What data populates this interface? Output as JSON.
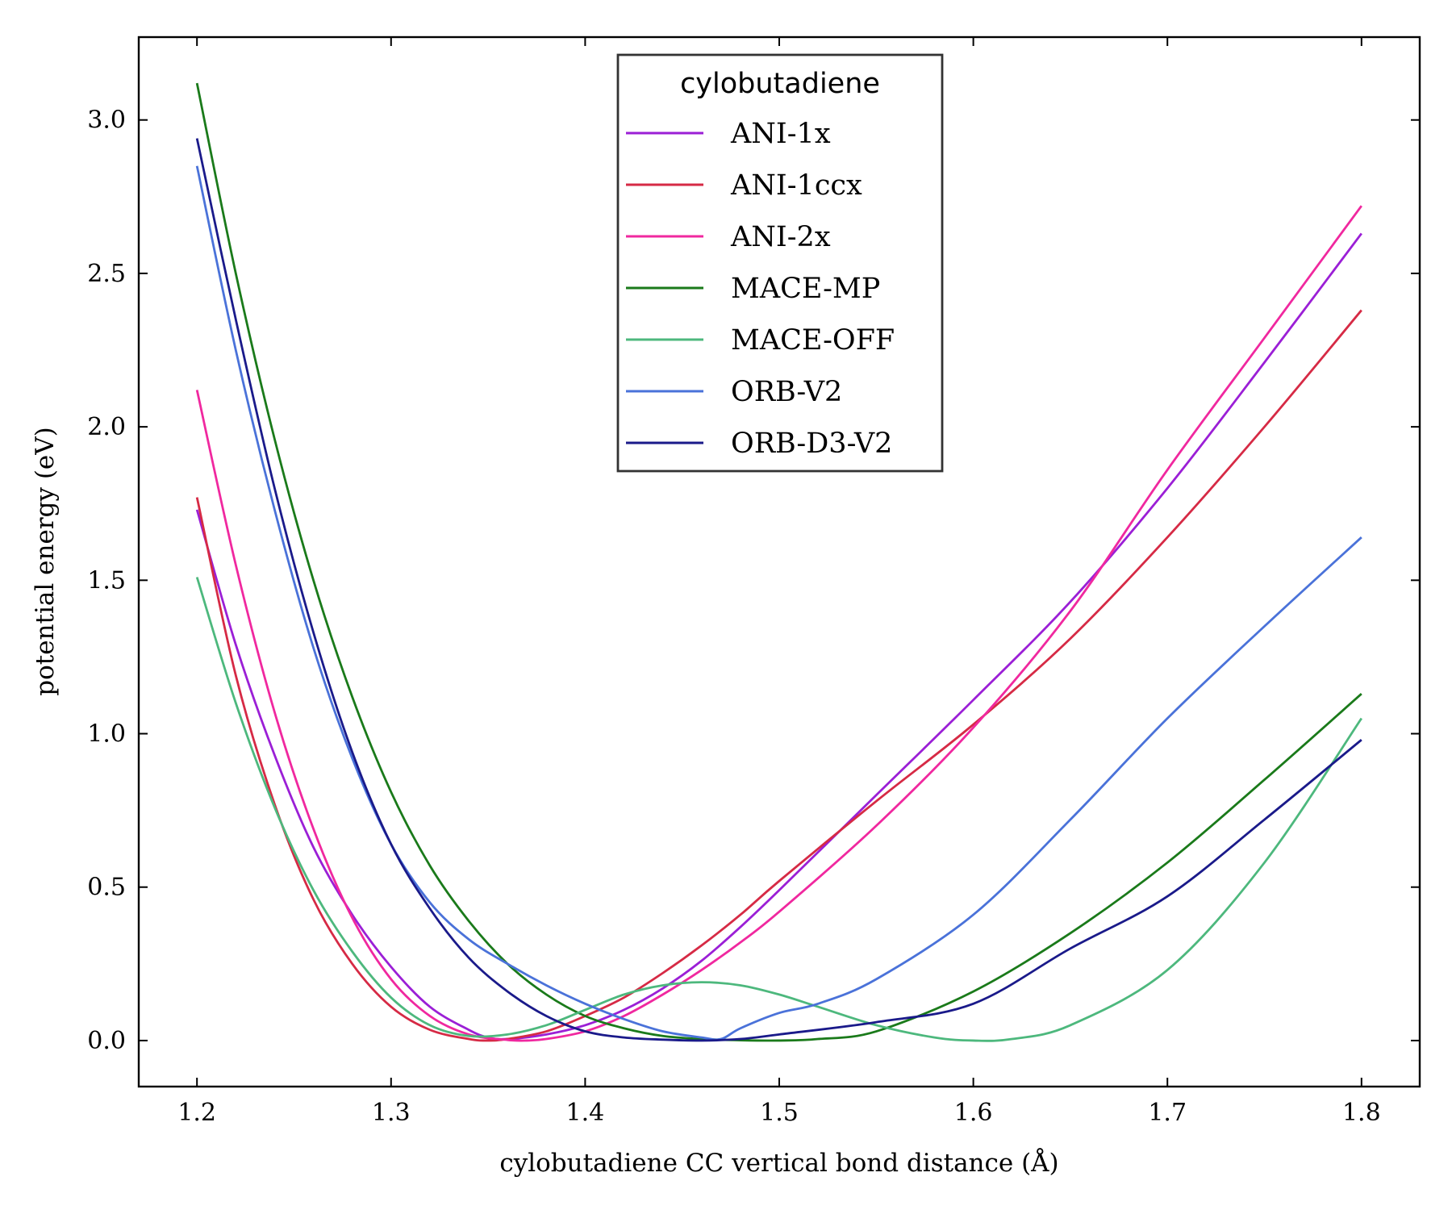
{
  "chart_data": {
    "type": "line",
    "title": "",
    "xlabel": "cylobutadiene CC vertical bond distance (Å)",
    "ylabel": "potential energy (eV)",
    "xlim": [
      1.17,
      1.83
    ],
    "ylim": [
      -0.15,
      3.27
    ],
    "xticks": [
      1.2,
      1.3,
      1.4,
      1.5,
      1.6,
      1.7,
      1.8
    ],
    "yticks": [
      0.0,
      0.5,
      1.0,
      1.5,
      2.0,
      2.5,
      3.0
    ],
    "xtick_labels": [
      "1.2",
      "1.3",
      "1.4",
      "1.5",
      "1.6",
      "1.7",
      "1.8"
    ],
    "ytick_labels": [
      "0.0",
      "0.5",
      "1.0",
      "1.5",
      "2.0",
      "2.5",
      "3.0"
    ],
    "grid": false,
    "legend": {
      "title": "cylobutadiene",
      "placement": "top-center"
    },
    "series": [
      {
        "name": "ANI-1x",
        "color": "#9b1fd6",
        "x": [
          1.2,
          1.22,
          1.24,
          1.26,
          1.28,
          1.3,
          1.32,
          1.34,
          1.35,
          1.36,
          1.38,
          1.4,
          1.42,
          1.44,
          1.46,
          1.48,
          1.5,
          1.55,
          1.6,
          1.65,
          1.7,
          1.75,
          1.8
        ],
        "y": [
          1.73,
          1.29,
          0.93,
          0.63,
          0.41,
          0.24,
          0.11,
          0.035,
          0.01,
          0.005,
          0.02,
          0.05,
          0.1,
          0.17,
          0.26,
          0.37,
          0.49,
          0.8,
          1.11,
          1.43,
          1.8,
          2.21,
          2.63
        ]
      },
      {
        "name": "ANI-1ccx",
        "color": "#d62a45",
        "x": [
          1.2,
          1.22,
          1.24,
          1.26,
          1.28,
          1.3,
          1.32,
          1.34,
          1.35,
          1.36,
          1.38,
          1.4,
          1.42,
          1.44,
          1.46,
          1.48,
          1.5,
          1.55,
          1.6,
          1.65,
          1.7,
          1.75,
          1.8
        ],
        "y": [
          1.77,
          1.19,
          0.77,
          0.46,
          0.25,
          0.11,
          0.035,
          0.005,
          0.0,
          0.005,
          0.03,
          0.08,
          0.14,
          0.22,
          0.31,
          0.41,
          0.52,
          0.78,
          1.03,
          1.31,
          1.64,
          2.0,
          2.38
        ]
      },
      {
        "name": "ANI-2x",
        "color": "#f0289f",
        "x": [
          1.2,
          1.22,
          1.24,
          1.26,
          1.28,
          1.3,
          1.32,
          1.34,
          1.36,
          1.37,
          1.38,
          1.4,
          1.42,
          1.44,
          1.46,
          1.48,
          1.5,
          1.55,
          1.6,
          1.65,
          1.7,
          1.75,
          1.8
        ],
        "y": [
          2.12,
          1.55,
          1.07,
          0.69,
          0.4,
          0.2,
          0.08,
          0.02,
          0.002,
          0.0,
          0.005,
          0.03,
          0.08,
          0.15,
          0.23,
          0.32,
          0.42,
          0.7,
          1.02,
          1.4,
          1.86,
          2.29,
          2.72
        ]
      },
      {
        "name": "MACE-MP",
        "color": "#1a7a1a",
        "x": [
          1.2,
          1.22,
          1.24,
          1.26,
          1.28,
          1.3,
          1.32,
          1.34,
          1.36,
          1.38,
          1.4,
          1.42,
          1.44,
          1.46,
          1.48,
          1.5,
          1.52,
          1.55,
          1.6,
          1.65,
          1.7,
          1.75,
          1.8
        ],
        "y": [
          3.12,
          2.5,
          1.96,
          1.5,
          1.12,
          0.81,
          0.57,
          0.39,
          0.25,
          0.15,
          0.08,
          0.04,
          0.015,
          0.005,
          0.001,
          0.0,
          0.005,
          0.03,
          0.16,
          0.35,
          0.58,
          0.85,
          1.13
        ]
      },
      {
        "name": "MACE-OFF",
        "color": "#4db87d",
        "x": [
          1.2,
          1.22,
          1.24,
          1.26,
          1.28,
          1.3,
          1.32,
          1.34,
          1.36,
          1.38,
          1.4,
          1.42,
          1.44,
          1.46,
          1.48,
          1.5,
          1.52,
          1.55,
          1.58,
          1.6,
          1.62,
          1.65,
          1.7,
          1.75,
          1.8
        ],
        "y": [
          1.51,
          1.1,
          0.76,
          0.49,
          0.29,
          0.14,
          0.05,
          0.015,
          0.02,
          0.05,
          0.1,
          0.15,
          0.18,
          0.19,
          0.18,
          0.15,
          0.11,
          0.05,
          0.01,
          0.0,
          0.005,
          0.05,
          0.23,
          0.58,
          1.05
        ]
      },
      {
        "name": "ORB-V2",
        "color": "#4a72d9",
        "x": [
          1.2,
          1.22,
          1.24,
          1.26,
          1.28,
          1.3,
          1.32,
          1.34,
          1.36,
          1.38,
          1.4,
          1.42,
          1.44,
          1.46,
          1.47,
          1.48,
          1.5,
          1.52,
          1.55,
          1.6,
          1.65,
          1.7,
          1.75,
          1.8
        ],
        "y": [
          2.85,
          2.25,
          1.73,
          1.28,
          0.92,
          0.64,
          0.45,
          0.33,
          0.25,
          0.18,
          0.12,
          0.07,
          0.03,
          0.01,
          0.005,
          0.04,
          0.09,
          0.12,
          0.2,
          0.41,
          0.72,
          1.05,
          1.35,
          1.64
        ]
      },
      {
        "name": "ORB-D3-V2",
        "color": "#1a1a8a",
        "x": [
          1.2,
          1.22,
          1.24,
          1.26,
          1.28,
          1.3,
          1.32,
          1.34,
          1.36,
          1.38,
          1.4,
          1.42,
          1.44,
          1.46,
          1.48,
          1.5,
          1.55,
          1.6,
          1.65,
          1.7,
          1.75,
          1.8
        ],
        "y": [
          2.94,
          2.35,
          1.8,
          1.33,
          0.94,
          0.64,
          0.43,
          0.27,
          0.16,
          0.08,
          0.03,
          0.01,
          0.003,
          0.0,
          0.005,
          0.02,
          0.06,
          0.12,
          0.3,
          0.47,
          0.72,
          0.98
        ]
      }
    ]
  }
}
